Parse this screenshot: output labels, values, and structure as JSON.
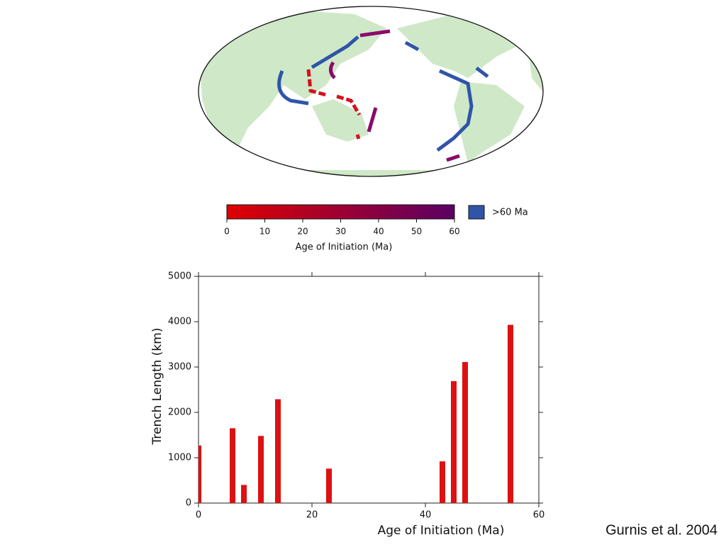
{
  "map": {
    "colorbar_ticks": [
      0,
      10,
      20,
      30,
      40,
      50,
      60
    ],
    "colorbar_label": "Age of Initiation (Ma)",
    "colorbar_lim": [
      0,
      60
    ],
    "colorbar_colors": [
      "#e00000",
      "#5a0064"
    ],
    "old_label": ">60 Ma",
    "old_color": "#2f55a8"
  },
  "chart_data": {
    "type": "bar",
    "x_label": "Age of Initiation (Ma)",
    "y_label": "Trench Length (km)",
    "x": [
      0,
      6,
      8,
      11,
      14,
      23,
      43,
      45,
      47,
      55
    ],
    "values": [
      1270,
      1650,
      400,
      1480,
      2290,
      760,
      920,
      2690,
      3110,
      3930
    ],
    "color": "#dd1111",
    "xlim": [
      0,
      60
    ],
    "xticks": [
      0,
      20,
      40,
      60
    ],
    "ylim": [
      0,
      5000
    ],
    "yticks": [
      0,
      1000,
      2000,
      3000,
      4000,
      5000
    ],
    "grid": false
  },
  "credit": "Gurnis et al. 2004"
}
